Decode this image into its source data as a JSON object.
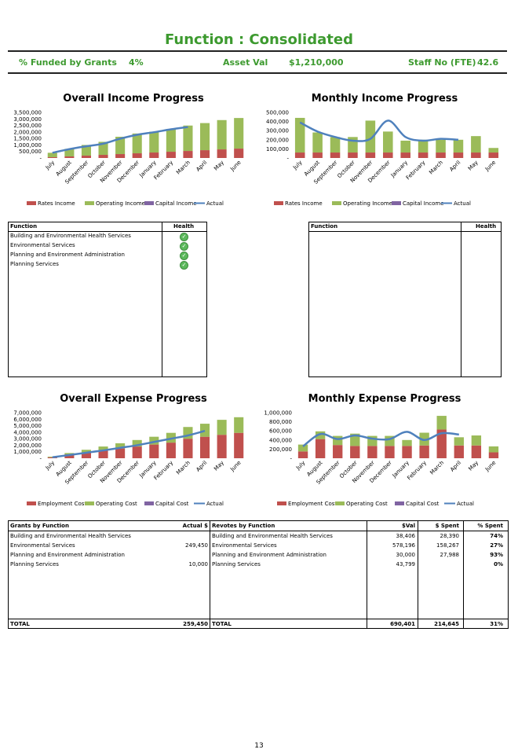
{
  "title": "Function : Consolidated",
  "summary": {
    "grants_label": "% Funded by Grants",
    "grants_value": "4%",
    "asset_label": "Asset Val",
    "asset_value": "$1,210,000",
    "staff_label": "Staff No (FTE)",
    "staff_value": "42.6"
  },
  "months": [
    "July",
    "August",
    "September",
    "October",
    "November",
    "December",
    "January",
    "February",
    "March",
    "April",
    "May",
    "June"
  ],
  "chart_data": [
    {
      "type": "bar",
      "title": "Overall Income Progress",
      "y_ticks": [
        "3,500,000",
        "3,000,000",
        "2,500,000",
        "2,000,000",
        "1,500,000",
        "1,000,000",
        "500,000",
        "-"
      ],
      "ylim": [
        0,
        3500000
      ],
      "legend": [
        "Rates Income",
        "Operating Income",
        "Capital Income",
        "Actual"
      ],
      "series": [
        {
          "name": "Rates Income",
          "values": [
            60000,
            120000,
            180000,
            240000,
            300000,
            360000,
            420000,
            480000,
            540000,
            600000,
            660000,
            720000
          ]
        },
        {
          "name": "Operating Income",
          "values": [
            340000,
            580000,
            820000,
            1000000,
            1330000,
            1520000,
            1600000,
            1750000,
            1950000,
            2080000,
            2250000,
            2350000
          ]
        },
        {
          "name": "Capital Income",
          "values": [
            0,
            0,
            0,
            0,
            0,
            0,
            0,
            0,
            0,
            0,
            0,
            0
          ]
        }
      ],
      "actual": [
        400000,
        680000,
        900000,
        1100000,
        1480000,
        1780000,
        1980000,
        2200000,
        2380000
      ]
    },
    {
      "type": "bar",
      "title": "Monthly Income Progress",
      "y_ticks": [
        "500,000",
        "400,000",
        "300,000",
        "200,000",
        "100,000",
        "-"
      ],
      "ylim": [
        0,
        500000
      ],
      "legend": [
        "Rates Income",
        "Operating Income",
        "Capital Income",
        "Actual"
      ],
      "series": [
        {
          "name": "Rates Income",
          "values": [
            60000,
            60000,
            60000,
            60000,
            60000,
            60000,
            60000,
            60000,
            60000,
            60000,
            60000,
            60000
          ]
        },
        {
          "name": "Operating Income",
          "values": [
            380000,
            220000,
            170000,
            170000,
            350000,
            230000,
            130000,
            140000,
            140000,
            140000,
            180000,
            50000
          ]
        },
        {
          "name": "Capital Income",
          "values": [
            0,
            0,
            0,
            0,
            0,
            0,
            0,
            0,
            0,
            0,
            0,
            0
          ]
        }
      ],
      "actual": [
        390000,
        290000,
        230000,
        190000,
        210000,
        410000,
        230000,
        190000,
        210000,
        200000
      ]
    },
    {
      "type": "bar",
      "title": "Overall Expense Progress",
      "y_ticks": [
        "7,000,000",
        "6,000,000",
        "5,000,000",
        "4,000,000",
        "3,000,000",
        "2,000,000",
        "1,000,000",
        "-"
      ],
      "ylim": [
        0,
        7000000
      ],
      "legend": [
        "Employment Cost",
        "Operating Cost",
        "Capital Cost",
        "Actual"
      ],
      "series": [
        {
          "name": "Employment Cost",
          "values": [
            150000,
            600000,
            900000,
            1200000,
            1500000,
            1800000,
            2100000,
            2400000,
            3000000,
            3300000,
            3600000,
            3900000
          ]
        },
        {
          "name": "Operating Cost",
          "values": [
            100000,
            200000,
            400000,
            600000,
            800000,
            1000000,
            1200000,
            1500000,
            1800000,
            2000000,
            2300000,
            2400000
          ]
        },
        {
          "name": "Capital Cost",
          "values": [
            0,
            0,
            0,
            0,
            0,
            0,
            0,
            0,
            0,
            0,
            0,
            0
          ]
        }
      ],
      "actual": [
        150000,
        500000,
        850000,
        1200000,
        1600000,
        2000000,
        2500000,
        3000000,
        3500000,
        4200000
      ]
    },
    {
      "type": "bar",
      "title": "Monthly Expense Progress",
      "y_ticks": [
        "1,000,000",
        "800,000",
        "600,000",
        "400,000",
        "200,000",
        "-"
      ],
      "ylim": [
        0,
        1000000
      ],
      "legend": [
        "Employment Cost",
        "Operating Cost",
        "Capital Cost",
        "Actual"
      ],
      "series": [
        {
          "name": "Employment Cost",
          "values": [
            150000,
            420000,
            290000,
            270000,
            270000,
            270000,
            270000,
            280000,
            630000,
            280000,
            280000,
            130000
          ]
        },
        {
          "name": "Operating Cost",
          "values": [
            150000,
            170000,
            200000,
            270000,
            220000,
            220000,
            130000,
            280000,
            300000,
            180000,
            220000,
            130000
          ]
        },
        {
          "name": "Capital Cost",
          "values": [
            0,
            0,
            0,
            0,
            0,
            0,
            0,
            0,
            0,
            0,
            0,
            0
          ]
        }
      ],
      "actual": [
        260000,
        530000,
        420000,
        500000,
        430000,
        420000,
        580000,
        400000,
        550000,
        520000
      ]
    }
  ],
  "colors": {
    "rates": "#c0504d",
    "operating": "#9bbb59",
    "capital": "#8064a2",
    "actual": "#4f81bd",
    "green_title": "#3d9a2f"
  },
  "health_left": {
    "col1": "Function",
    "col2": "Health",
    "rows": [
      "Building and Environmental Health Services",
      "Environmental Services",
      "Planning and Environment Administration",
      "Planning Services"
    ],
    "icon": "check-circle-icon"
  },
  "health_right": {
    "col1": "Function",
    "col2": "Health"
  },
  "grants": {
    "col1": "Grants by Function",
    "col2": "Actual $",
    "rows": [
      [
        "Building and Environmental Health Services",
        ""
      ],
      [
        "Environmental Services",
        "249,450"
      ],
      [
        "Planning and Environment Administration",
        ""
      ],
      [
        "Planning Services",
        "10,000"
      ]
    ],
    "total_label": "TOTAL",
    "total": "259,450"
  },
  "revotes": {
    "col1": "Revotes by Function",
    "col2": "$Val",
    "col3": "$ Spent",
    "col4": "% Spent",
    "rows": [
      [
        "Building and Environmental Health Services",
        "38,406",
        "28,390",
        "74%"
      ],
      [
        "Environmental Services",
        "578,196",
        "158,267",
        "27%"
      ],
      [
        "Planning and Environment Administration",
        "30,000",
        "27,988",
        "93%"
      ],
      [
        "Planning Services",
        "43,799",
        "",
        "0%"
      ]
    ],
    "total_label": "TOTAL",
    "total_val": "690,401",
    "total_spent": "214,645",
    "total_pct": "31%"
  },
  "page_number": "13"
}
